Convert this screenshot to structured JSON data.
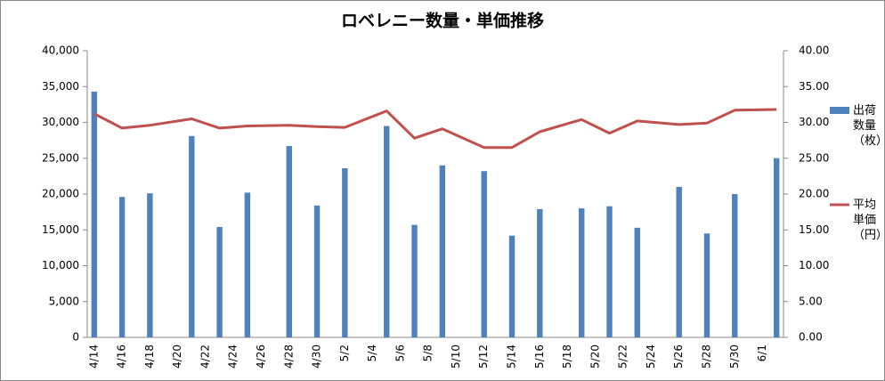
{
  "chart_data": {
    "type": "bar_line",
    "title": "ロベレニー数量・単価推移",
    "categories": [
      "4/14",
      null,
      "4/16",
      null,
      "4/18",
      null,
      "4/20",
      null,
      "4/22",
      null,
      "4/24",
      null,
      "4/26",
      null,
      "4/28",
      null,
      "4/30",
      null,
      "5/2",
      null,
      "5/4",
      null,
      "5/6",
      null,
      "5/8",
      null,
      "5/10",
      null,
      "5/12",
      null,
      "5/14",
      null,
      "5/16",
      null,
      "5/18",
      null,
      "5/20",
      null,
      "5/22",
      null,
      "5/24",
      null,
      "5/26",
      null,
      "5/28",
      null,
      "5/30",
      null,
      "6/1",
      null
    ],
    "series": [
      {
        "name": "出荷\n数量\n（枚）",
        "type": "bar",
        "color": "#4f81bd",
        "values": [
          34300,
          null,
          19600,
          null,
          20100,
          null,
          null,
          28100,
          null,
          15400,
          null,
          20200,
          null,
          null,
          26700,
          null,
          18400,
          null,
          23600,
          null,
          null,
          29500,
          null,
          15700,
          null,
          24000,
          null,
          null,
          23200,
          null,
          14200,
          null,
          17900,
          null,
          null,
          18000,
          null,
          18300,
          null,
          15300,
          null,
          null,
          21000,
          null,
          14500,
          null,
          20000,
          null,
          null,
          25000
        ]
      },
      {
        "name": "平均\n単価\n（円）",
        "type": "line",
        "axis": "y2",
        "color": "#c0504d",
        "values": [
          31.2,
          null,
          29.2,
          null,
          29.6,
          null,
          null,
          30.5,
          null,
          29.2,
          null,
          29.5,
          null,
          null,
          29.6,
          null,
          29.4,
          null,
          29.3,
          null,
          null,
          31.6,
          null,
          27.8,
          null,
          29.1,
          null,
          null,
          26.5,
          null,
          26.5,
          null,
          28.7,
          null,
          null,
          30.4,
          null,
          28.5,
          null,
          30.2,
          null,
          null,
          29.7,
          null,
          29.9,
          null,
          31.7,
          null,
          null,
          31.8
        ]
      }
    ],
    "ylim": [
      0,
      40000
    ],
    "yticks": [
      0,
      {
        "value": 5000,
        "label": "5,000"
      },
      {
        "value": 10000,
        "label": "10,000"
      },
      {
        "value": 15000,
        "label": "15,000"
      },
      {
        "value": 20000,
        "label": "20,000"
      },
      {
        "value": 25000,
        "label": "25,000"
      },
      {
        "value": 30000,
        "label": "30,000"
      },
      {
        "value": 35000,
        "label": "35,000"
      },
      {
        "value": 40000,
        "label": "40,000"
      }
    ],
    "y2lim": [
      0,
      40
    ],
    "y2ticks": [
      {
        "value": 0,
        "label": "0.00"
      },
      {
        "value": 5,
        "label": "5.00"
      },
      {
        "value": 10,
        "label": "10.00"
      },
      {
        "value": 15,
        "label": "15.00"
      },
      {
        "value": 20,
        "label": "20.00"
      },
      {
        "value": 25,
        "label": "25.00"
      },
      {
        "value": 30,
        "label": "30.00"
      },
      {
        "value": 35,
        "label": "35.00"
      },
      {
        "value": 40,
        "label": "40.00"
      }
    ],
    "grid": false,
    "legend": "right"
  }
}
